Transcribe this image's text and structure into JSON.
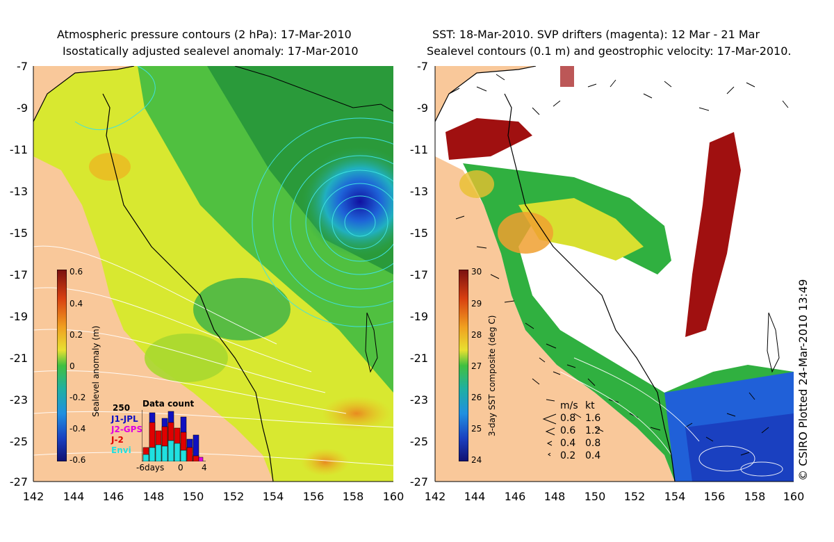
{
  "left_panel": {
    "title_line1": "Atmospheric pressure contours (2 hPa): 17-Mar-2010",
    "title_line2": "Isostatically adjusted sealevel anomaly: 17-Mar-2010",
    "colorbar": {
      "label": "Sealevel anomaly (m)",
      "ticks": [
        "0.6",
        "0.4",
        "0.2",
        "0",
        "-0.2",
        "-0.4",
        "-0.6"
      ],
      "range": [
        -0.6,
        0.6
      ]
    },
    "data_count": {
      "title": "Data count",
      "max_label": "250",
      "legend": [
        {
          "name": "J1-JPL",
          "color": "#1010c0"
        },
        {
          "name": "J2-GPS",
          "color": "#e000e0"
        },
        {
          "name": "J-2",
          "color": "#e00000"
        },
        {
          "name": "Envi",
          "color": "#20e0e0"
        }
      ],
      "axis_labels": [
        "-6days",
        "0",
        "4"
      ]
    }
  },
  "right_panel": {
    "title_line1": "SST: 18-Mar-2010. SVP drifters (magenta): 12 Mar - 21 Mar",
    "title_line2": "Sealevel contours (0.1 m) and geostrophic velocity: 17-Mar-2010.",
    "colorbar": {
      "label": "3-day SST composite (deg C)",
      "ticks": [
        "30",
        "29",
        "28",
        "27",
        "26",
        "25",
        "24"
      ],
      "range": [
        24,
        30
      ]
    },
    "velocity_legend": {
      "header_ms": "m/s",
      "header_kt": "kt",
      "rows": [
        {
          "ms": "0.8",
          "kt": "1.6"
        },
        {
          "ms": "0.6",
          "kt": "1.2"
        },
        {
          "ms": "0.4",
          "kt": "0.8"
        },
        {
          "ms": "0.2",
          "kt": "0.4"
        }
      ]
    }
  },
  "axes": {
    "lat_labels": [
      "-7",
      "-9",
      "-11",
      "-13",
      "-15",
      "-17",
      "-19",
      "-21",
      "-23",
      "-25",
      "-27"
    ],
    "lon_labels": [
      "142",
      "144",
      "146",
      "148",
      "150",
      "152",
      "154",
      "156",
      "158",
      "160"
    ]
  },
  "credit": "© CSIRO Plotted 24-Mar-2010 13:49",
  "colors": {
    "land": "#f9c89a",
    "sst_high": "#a01010",
    "anomaly_low": "#1a1aa0"
  }
}
